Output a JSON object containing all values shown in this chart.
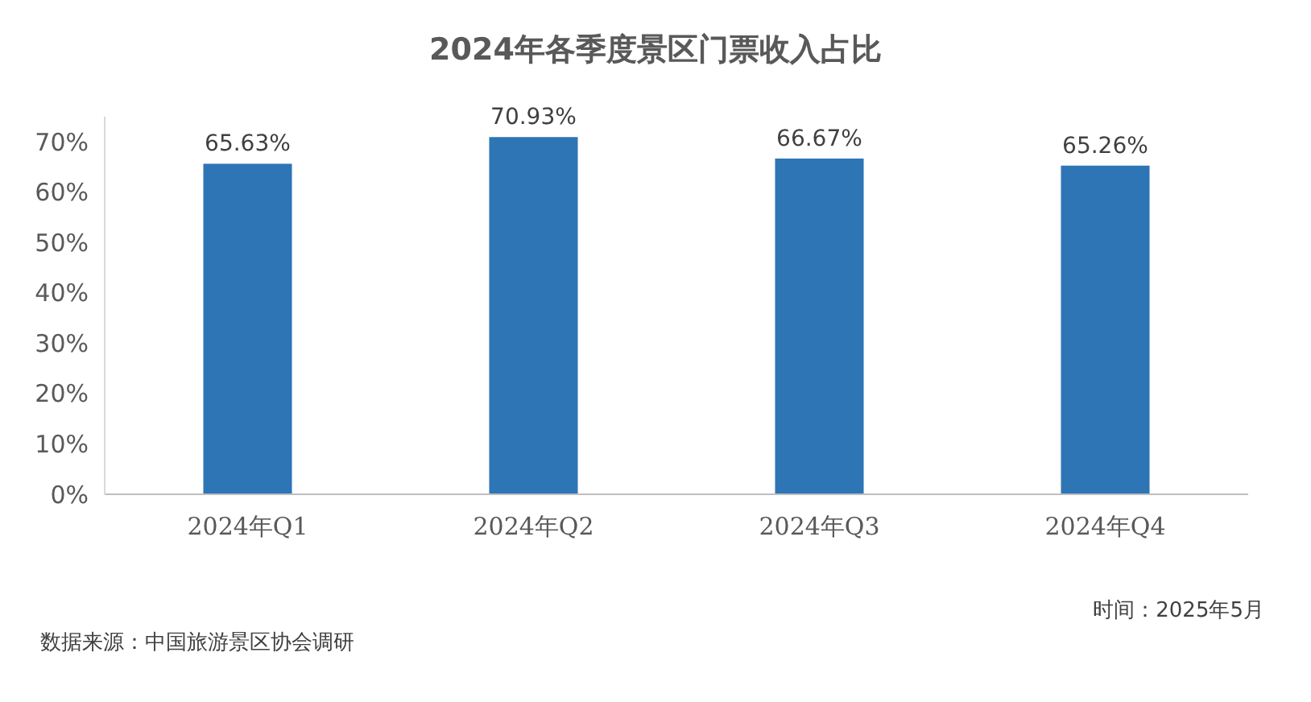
{
  "chart_data": {
    "type": "bar",
    "title": "2024年各季度景区门票收入占比",
    "categories": [
      "2024年Q1",
      "2024年Q2",
      "2024年Q3",
      "2024年Q4"
    ],
    "values": [
      65.63,
      70.93,
      66.67,
      65.26
    ],
    "value_labels": [
      "65.63%",
      "70.93%",
      "66.67%",
      "65.26%"
    ],
    "color": "#2e75b6",
    "ylim": [
      0,
      75
    ],
    "yticks": [
      {
        "value": 0,
        "label": "0%"
      },
      {
        "value": 10,
        "label": "10%"
      },
      {
        "value": 20,
        "label": "20%"
      },
      {
        "value": 30,
        "label": "30%"
      },
      {
        "value": 40,
        "label": "40%"
      },
      {
        "value": 50,
        "label": "50%"
      },
      {
        "value": 60,
        "label": "60%"
      },
      {
        "value": 70,
        "label": "70%"
      }
    ],
    "grid": false,
    "annotations": [
      "时间：2025年5月",
      "数据来源：中国旅游景区协会调研"
    ]
  }
}
